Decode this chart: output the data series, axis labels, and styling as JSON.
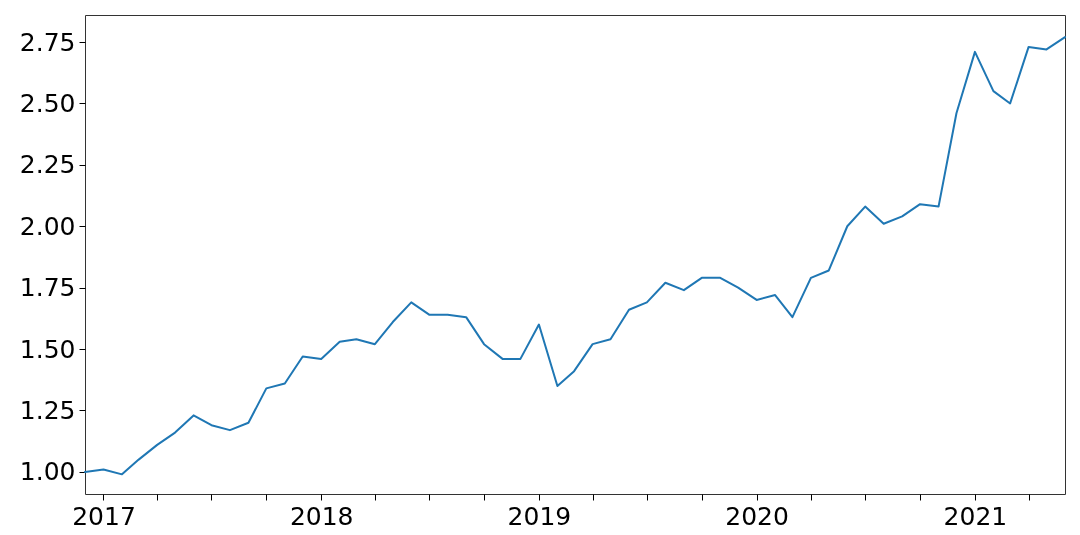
{
  "chart_data": {
    "type": "line",
    "x": [
      "2016-12",
      "2017-01",
      "2017-02",
      "2017-03",
      "2017-04",
      "2017-05",
      "2017-06",
      "2017-07",
      "2017-08",
      "2017-09",
      "2017-10",
      "2017-11",
      "2017-12",
      "2018-01",
      "2018-02",
      "2018-03",
      "2018-04",
      "2018-05",
      "2018-06",
      "2018-07",
      "2018-08",
      "2018-09",
      "2018-10",
      "2018-11",
      "2018-12",
      "2019-01",
      "2019-02",
      "2019-03",
      "2019-04",
      "2019-05",
      "2019-06",
      "2019-07",
      "2019-08",
      "2019-09",
      "2019-10",
      "2019-11",
      "2019-12",
      "2020-01",
      "2020-02",
      "2020-03",
      "2020-04",
      "2020-05",
      "2020-06",
      "2020-07",
      "2020-08",
      "2020-09",
      "2020-10",
      "2020-11",
      "2020-12",
      "2021-01",
      "2021-02",
      "2021-03",
      "2021-04",
      "2021-05",
      "2021-06"
    ],
    "series": [
      {
        "color": "#1f77b4",
        "values": [
          1.0,
          1.01,
          0.99,
          1.05,
          1.11,
          1.16,
          1.23,
          1.19,
          1.17,
          1.2,
          1.34,
          1.36,
          1.47,
          1.46,
          1.53,
          1.54,
          1.52,
          1.61,
          1.69,
          1.64,
          1.64,
          1.63,
          1.52,
          1.46,
          1.46,
          1.6,
          1.35,
          1.41,
          1.52,
          1.54,
          1.66,
          1.69,
          1.77,
          1.74,
          1.79,
          1.79,
          1.75,
          1.7,
          1.72,
          1.63,
          1.79,
          1.82,
          2.0,
          2.08,
          2.01,
          2.04,
          2.09,
          2.08,
          2.46,
          2.71,
          2.55,
          2.5,
          2.73,
          2.72,
          2.77
        ]
      }
    ],
    "xlim": [
      "2016-12",
      "2021-06"
    ],
    "xticks": [
      "2017",
      {
        "value": "2017-04",
        "label": null
      },
      {
        "value": "2017-07",
        "label": null
      },
      {
        "value": "2017-10",
        "label": null
      },
      "2018",
      {
        "value": "2018-04",
        "label": null
      },
      {
        "value": "2018-07",
        "label": null
      },
      {
        "value": "2018-10",
        "label": null
      },
      "2019",
      {
        "value": "2019-04",
        "label": null
      },
      {
        "value": "2019-07",
        "label": null
      },
      {
        "value": "2019-10",
        "label": null
      },
      "2020",
      {
        "value": "2020-04",
        "label": null
      },
      {
        "value": "2020-07",
        "label": null
      },
      {
        "value": "2020-10",
        "label": null
      },
      "2021",
      {
        "value": "2021-04",
        "label": null
      }
    ],
    "ylim": [
      0.91,
      2.86
    ],
    "yticks": [
      {
        "value": 1,
        "label": "1.00"
      },
      {
        "value": 1.25,
        "label": "1.25"
      },
      {
        "value": 1.5,
        "label": "1.50"
      },
      {
        "value": 1.75,
        "label": "1.75"
      },
      {
        "value": 2,
        "label": "2.00"
      },
      {
        "value": 2.25,
        "label": "2.25"
      },
      {
        "value": 2.5,
        "label": "2.50"
      },
      {
        "value": 2.75,
        "label": "2.75"
      }
    ],
    "grid": false,
    "marker": "none",
    "line_style": "solid"
  }
}
